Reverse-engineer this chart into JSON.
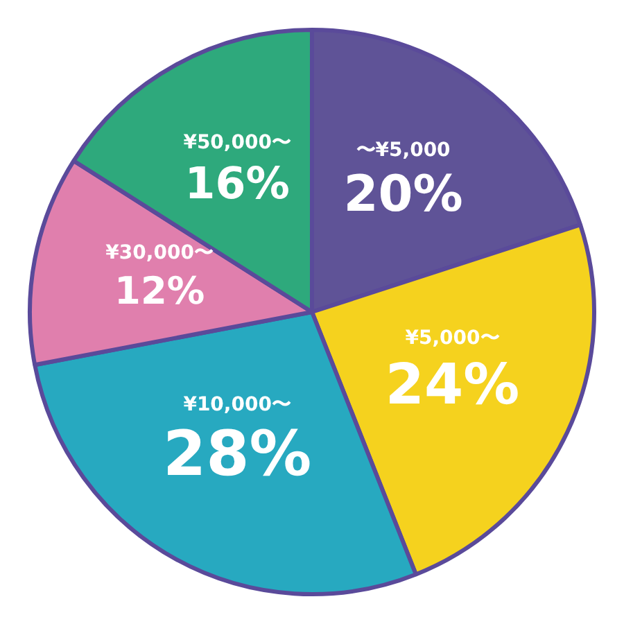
{
  "chart_data": {
    "type": "pie",
    "categories": [
      "〜¥5,000",
      "¥5,000〜",
      "¥10,000〜",
      "¥30,000〜",
      "¥50,000〜"
    ],
    "values": [
      20,
      24,
      28,
      12,
      16
    ],
    "value_labels": [
      "20%",
      "24%",
      "28%",
      "12%",
      "16%"
    ],
    "colors": [
      "#5f5397",
      "#f5d21e",
      "#27a9c0",
      "#e07fad",
      "#2ea97c"
    ],
    "legend": false
  }
}
